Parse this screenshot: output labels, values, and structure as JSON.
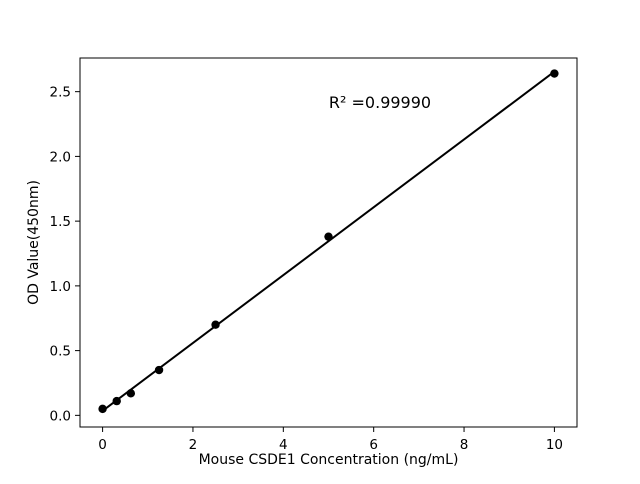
{
  "figure": {
    "background": "#ffffff"
  },
  "chart_data": {
    "type": "scatter",
    "title": "",
    "xlabel": "Mouse CSDE1 Concentration (ng/mL)",
    "ylabel": "OD Value(450nm)",
    "annotation": "R² =0.99990",
    "series": [
      {
        "name": "standard-points",
        "x": [
          0,
          0.3125,
          0.625,
          1.25,
          2.5,
          5,
          10
        ],
        "y": [
          0.05,
          0.11,
          0.17,
          0.35,
          0.7,
          1.38,
          2.64
        ]
      }
    ],
    "fit_line": {
      "x": [
        0,
        10
      ],
      "y": [
        0.035,
        2.655
      ]
    },
    "xticks": [
      0,
      2,
      4,
      6,
      8,
      10
    ],
    "yticks": [
      0.0,
      0.5,
      1.0,
      1.5,
      2.0,
      2.5
    ],
    "xlim": [
      -0.5,
      10.5
    ],
    "ylim": [
      -0.09,
      2.76
    ],
    "grid": false,
    "legend": null,
    "marker_color": "#000000",
    "line_color": "#000000",
    "axis_color": "#000000",
    "background": "#ffffff"
  }
}
